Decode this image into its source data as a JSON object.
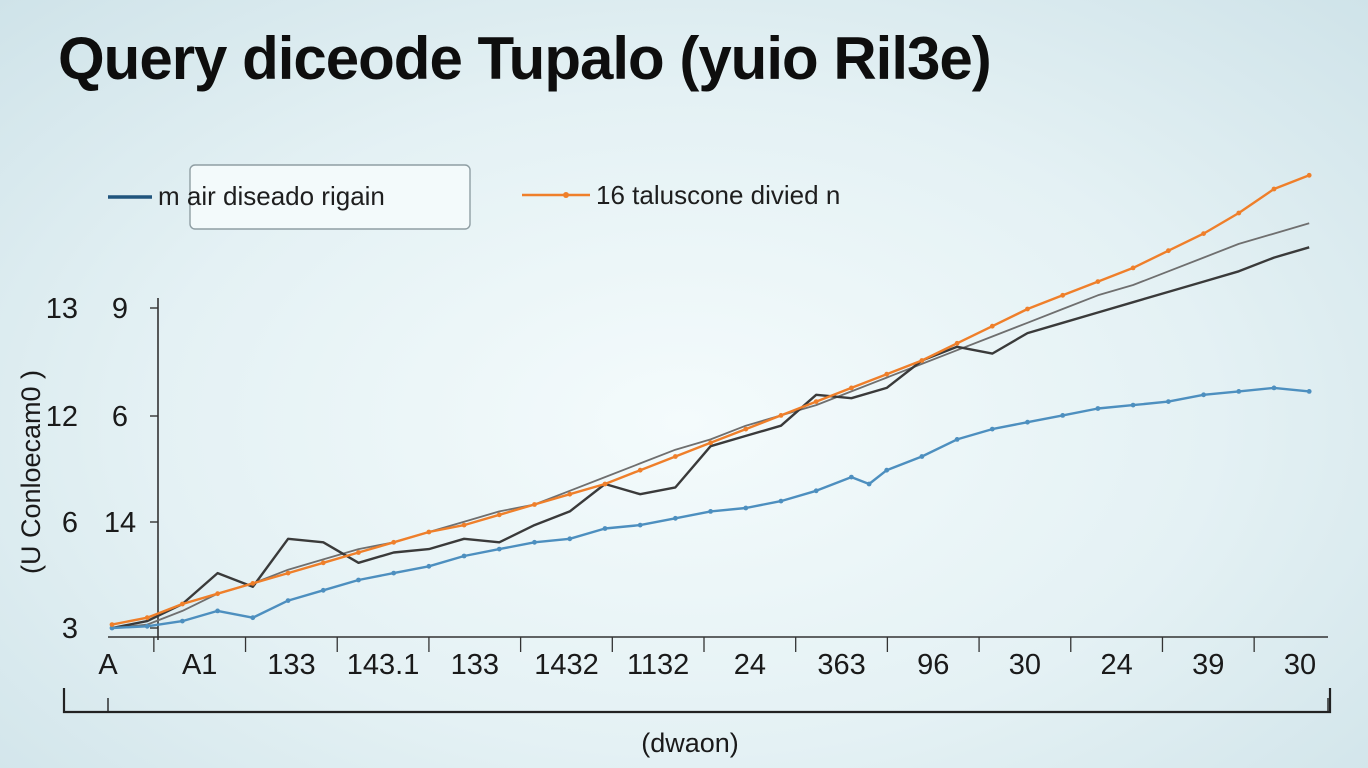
{
  "chart_data": {
    "type": "line",
    "title": "Query diceode Tupalo (yuio Ril3e)",
    "xlabel": "(dwaon)",
    "ylabel": "(U Conloecam0 )",
    "y_ticks": [
      {
        "value": 3,
        "labels": [
          "3",
          ""
        ]
      },
      {
        "value": 6,
        "labels": [
          "6",
          "14"
        ]
      },
      {
        "value": 12,
        "labels": [
          "12",
          "6"
        ]
      },
      {
        "value": 13,
        "labels": [
          "13",
          "9"
        ]
      }
    ],
    "x_ticks": [
      "A",
      "A1",
      "133",
      "143.1",
      "133",
      "1432",
      "1132",
      "24",
      "363",
      "96",
      "30",
      "24",
      "39",
      "30"
    ],
    "x": [
      1,
      2,
      3,
      4,
      5,
      6,
      7,
      8,
      9,
      10,
      11,
      12,
      13,
      14
    ],
    "legend": {
      "placement": "top",
      "entries": [
        {
          "series": 0,
          "label": "m air diseado rigain"
        },
        {
          "series": 1,
          "label": "16 taluscone divied n"
        }
      ]
    },
    "series": [
      {
        "name": "m air diseado rigain",
        "color": "#4d8fbf",
        "style": "line-markers",
        "points": [
          [
            0.4,
            3.0
          ],
          [
            0.8,
            3.05
          ],
          [
            1.2,
            3.2
          ],
          [
            1.6,
            3.5
          ],
          [
            2.0,
            3.3
          ],
          [
            2.4,
            3.8
          ],
          [
            2.8,
            4.1
          ],
          [
            3.2,
            4.4
          ],
          [
            3.6,
            4.6
          ],
          [
            4.0,
            4.8
          ],
          [
            4.4,
            5.1
          ],
          [
            4.8,
            5.3
          ],
          [
            5.2,
            5.5
          ],
          [
            5.6,
            5.6
          ],
          [
            6.0,
            5.9
          ],
          [
            6.4,
            6.0
          ],
          [
            6.8,
            6.2
          ],
          [
            7.2,
            6.4
          ],
          [
            7.6,
            6.5
          ],
          [
            8.0,
            6.7
          ],
          [
            8.4,
            7.0
          ],
          [
            8.8,
            7.4
          ],
          [
            9.0,
            7.2
          ],
          [
            9.2,
            7.6
          ],
          [
            9.6,
            8.0
          ],
          [
            10.0,
            8.5
          ],
          [
            10.4,
            8.8
          ],
          [
            10.8,
            9.0
          ],
          [
            11.2,
            9.2
          ],
          [
            11.6,
            9.4
          ],
          [
            12.0,
            9.5
          ],
          [
            12.4,
            9.6
          ],
          [
            12.8,
            9.8
          ],
          [
            13.2,
            9.9
          ],
          [
            13.6,
            10.0
          ],
          [
            14.0,
            9.9
          ]
        ]
      },
      {
        "name": "16 taluscone divied n",
        "color": "#ef7f2a",
        "style": "line-markers",
        "points": [
          [
            0.4,
            3.1
          ],
          [
            0.8,
            3.3
          ],
          [
            1.2,
            3.7
          ],
          [
            1.6,
            4.0
          ],
          [
            2.0,
            4.3
          ],
          [
            2.4,
            4.6
          ],
          [
            2.8,
            4.9
          ],
          [
            3.2,
            5.2
          ],
          [
            3.6,
            5.5
          ],
          [
            4.0,
            5.8
          ],
          [
            4.4,
            6.0
          ],
          [
            4.8,
            6.3
          ],
          [
            5.2,
            6.6
          ],
          [
            5.6,
            6.9
          ],
          [
            6.0,
            7.2
          ],
          [
            6.4,
            7.6
          ],
          [
            6.8,
            8.0
          ],
          [
            7.2,
            8.4
          ],
          [
            7.6,
            8.8
          ],
          [
            8.0,
            9.2
          ],
          [
            8.4,
            9.6
          ],
          [
            8.8,
            10.0
          ],
          [
            9.2,
            10.4
          ],
          [
            9.6,
            10.8
          ],
          [
            10.0,
            11.3
          ],
          [
            10.4,
            11.8
          ],
          [
            10.8,
            12.3
          ],
          [
            11.2,
            12.7
          ],
          [
            11.6,
            13.1
          ],
          [
            12.0,
            13.5
          ],
          [
            12.4,
            14.0
          ],
          [
            12.8,
            14.5
          ],
          [
            13.2,
            15.1
          ],
          [
            13.6,
            15.8
          ],
          [
            14.0,
            16.2
          ]
        ]
      },
      {
        "name": "",
        "color": "#3a3a3a",
        "style": "line",
        "points": [
          [
            0.4,
            3.0
          ],
          [
            0.8,
            3.2
          ],
          [
            1.2,
            3.7
          ],
          [
            1.6,
            4.6
          ],
          [
            2.0,
            4.2
          ],
          [
            2.4,
            5.6
          ],
          [
            2.8,
            5.5
          ],
          [
            3.2,
            4.9
          ],
          [
            3.6,
            5.2
          ],
          [
            4.0,
            5.3
          ],
          [
            4.4,
            5.6
          ],
          [
            4.8,
            5.5
          ],
          [
            5.2,
            6.0
          ],
          [
            5.6,
            6.4
          ],
          [
            6.0,
            7.2
          ],
          [
            6.4,
            6.9
          ],
          [
            6.8,
            7.1
          ],
          [
            7.2,
            8.3
          ],
          [
            7.6,
            8.6
          ],
          [
            8.0,
            8.9
          ],
          [
            8.4,
            9.8
          ],
          [
            8.8,
            9.7
          ],
          [
            9.2,
            10.0
          ],
          [
            9.6,
            10.8
          ],
          [
            10.0,
            11.2
          ],
          [
            10.4,
            11.0
          ],
          [
            10.8,
            11.6
          ],
          [
            11.2,
            11.9
          ],
          [
            11.6,
            12.2
          ],
          [
            12.0,
            12.5
          ],
          [
            12.4,
            12.8
          ],
          [
            12.8,
            13.1
          ],
          [
            13.2,
            13.4
          ],
          [
            13.6,
            13.8
          ],
          [
            14.0,
            14.1
          ]
        ]
      },
      {
        "name": "",
        "color": "#6f6f6f",
        "style": "line",
        "points": [
          [
            0.4,
            3.0
          ],
          [
            0.8,
            3.1
          ],
          [
            1.2,
            3.5
          ],
          [
            1.6,
            4.0
          ],
          [
            2.0,
            4.3
          ],
          [
            2.4,
            4.7
          ],
          [
            2.8,
            5.0
          ],
          [
            3.2,
            5.3
          ],
          [
            3.6,
            5.5
          ],
          [
            4.0,
            5.8
          ],
          [
            4.4,
            6.1
          ],
          [
            4.8,
            6.4
          ],
          [
            5.2,
            6.6
          ],
          [
            5.6,
            7.0
          ],
          [
            6.0,
            7.4
          ],
          [
            6.4,
            7.8
          ],
          [
            6.8,
            8.2
          ],
          [
            7.2,
            8.5
          ],
          [
            7.6,
            8.9
          ],
          [
            8.0,
            9.2
          ],
          [
            8.4,
            9.5
          ],
          [
            8.8,
            9.9
          ],
          [
            9.2,
            10.3
          ],
          [
            9.6,
            10.7
          ],
          [
            10.0,
            11.1
          ],
          [
            10.4,
            11.5
          ],
          [
            10.8,
            11.9
          ],
          [
            11.2,
            12.3
          ],
          [
            11.6,
            12.7
          ],
          [
            12.0,
            13.0
          ],
          [
            12.4,
            13.4
          ],
          [
            12.8,
            13.8
          ],
          [
            13.2,
            14.2
          ],
          [
            13.6,
            14.5
          ],
          [
            14.0,
            14.8
          ]
        ]
      }
    ],
    "grid": false
  }
}
